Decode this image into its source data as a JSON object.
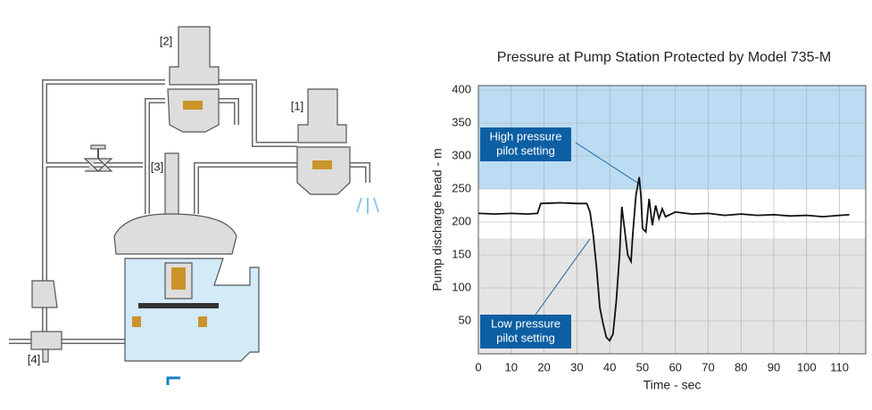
{
  "chart_data": {
    "type": "line",
    "title": "Pressure at Pump Station Protected by Model 735-M",
    "x_label": "Time - sec",
    "y_label": "Pump discharge head - m",
    "x": [
      0,
      5,
      10,
      15,
      18,
      19,
      25,
      30,
      33,
      34,
      35,
      36,
      37,
      38,
      39,
      40,
      41,
      42,
      43,
      43.7,
      44.5,
      45.5,
      46.5,
      47,
      48,
      49,
      49.5,
      50,
      51,
      52,
      53,
      54,
      55,
      56,
      57,
      60,
      65,
      70,
      75,
      80,
      85,
      90,
      95,
      100,
      105,
      110,
      113
    ],
    "values": [
      213,
      212,
      213,
      212,
      213,
      228,
      229,
      228,
      228,
      215,
      180,
      130,
      70,
      45,
      25,
      20,
      30,
      80,
      150,
      223,
      190,
      150,
      140,
      180,
      240,
      268,
      240,
      190,
      185,
      235,
      195,
      225,
      205,
      220,
      208,
      215,
      212,
      213,
      210,
      212,
      210,
      211,
      209,
      210,
      208,
      210,
      211
    ],
    "color": "#111111",
    "xlim": [
      0,
      118
    ],
    "ylim": [
      0,
      400
    ],
    "xticks": [
      0,
      10,
      20,
      30,
      40,
      50,
      60,
      70,
      80,
      90,
      100,
      110
    ],
    "yticks": [
      50,
      100,
      150,
      200,
      250,
      300,
      350,
      400
    ],
    "grid": true,
    "high_setting": 250,
    "high_color": "#bcdcf3",
    "low_setting": 175,
    "low_color": "#e4e4e4",
    "annotations": [
      {
        "text": [
          "High pressure",
          "pilot setting"
        ]
      },
      {
        "text": [
          "Low pressure",
          "pilot setting"
        ]
      }
    ]
  },
  "diagram": {
    "labels": [
      "[1]",
      "[2]",
      "[3]",
      "[4]"
    ]
  }
}
